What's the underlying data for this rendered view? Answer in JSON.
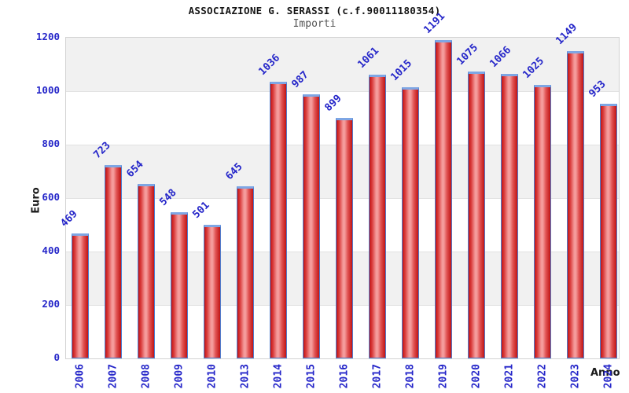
{
  "chart_data": {
    "type": "bar",
    "title": "ASSOCIAZIONE G. SERASSI (c.f.90011180354)",
    "subtitle": "Importi",
    "xlabel": "Anno",
    "ylabel": "Euro",
    "categories": [
      "2006",
      "2007",
      "2008",
      "2009",
      "2010",
      "2013",
      "2014",
      "2015",
      "2016",
      "2017",
      "2018",
      "2019",
      "2020",
      "2021",
      "2022",
      "2023",
      "2024"
    ],
    "values": [
      469,
      723,
      654,
      548,
      501,
      645,
      1036,
      987,
      899,
      1061,
      1015,
      1191,
      1075,
      1066,
      1025,
      1149,
      953
    ],
    "ylim": [
      0,
      1200
    ],
    "yticks": [
      0,
      200,
      400,
      600,
      800,
      1000,
      1200
    ],
    "grid": "alternating-horizontal-bands",
    "legend": null,
    "colors": {
      "bar_fill_dark": "#c01414",
      "bar_fill_light": "#f59c9c",
      "bar_edge": "#4d7fd2",
      "bar_top_cap": "#7ea6e4",
      "axis_label_text": "#2526c9",
      "band_gray": "#f1f1f1",
      "title_text": "#141414",
      "subtitle_text": "#555555"
    }
  }
}
